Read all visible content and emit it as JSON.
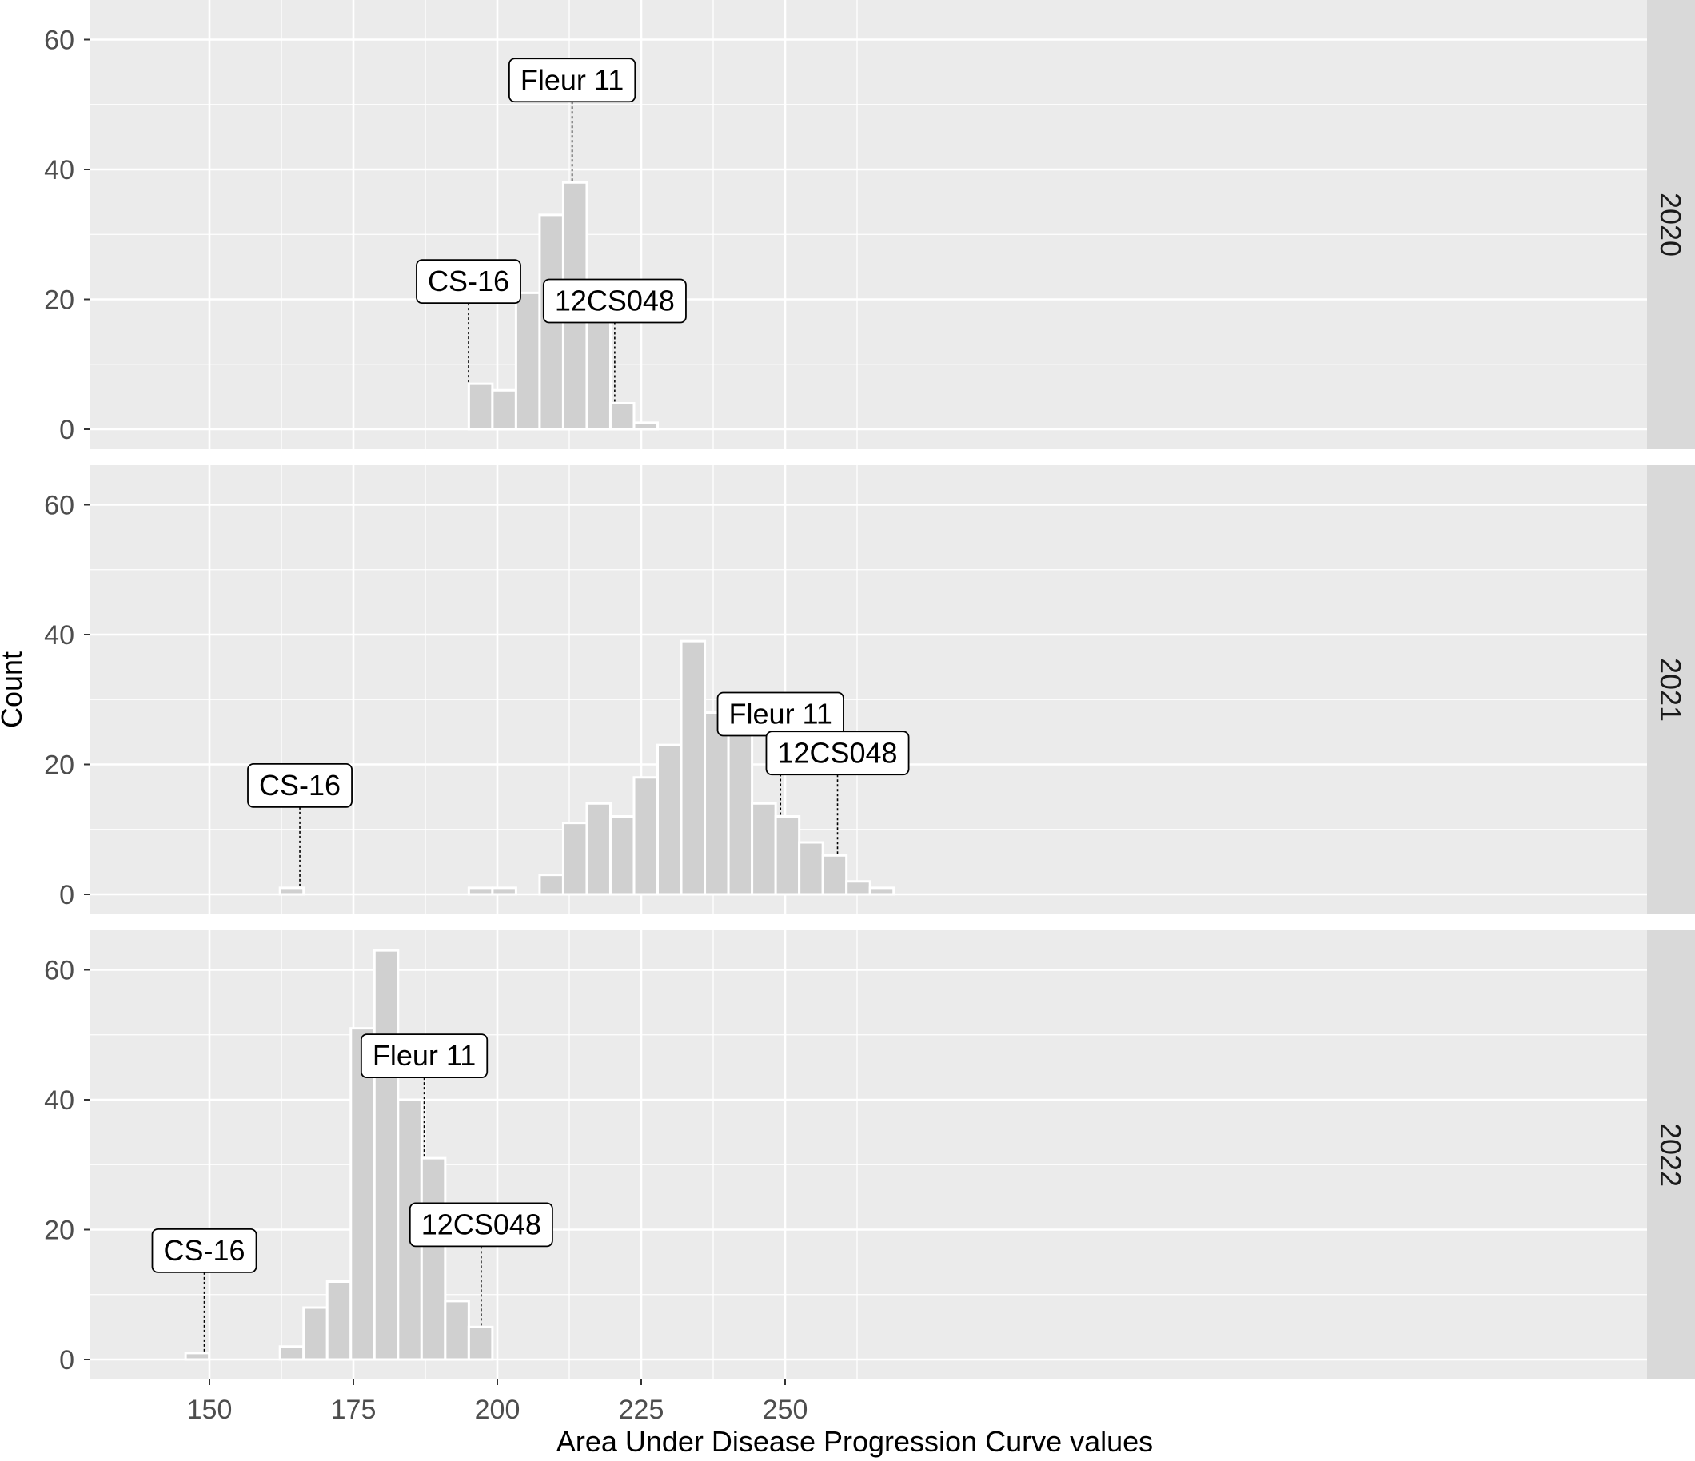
{
  "chart_data": {
    "type": "bar",
    "subtype": "faceted-histogram",
    "xlabel": "Area Under Disease Progression Curve values",
    "ylabel": "Count",
    "xlim": [
      140,
      270
    ],
    "ylim": [
      -3,
      66
    ],
    "x_ticks": [
      150,
      175,
      200,
      225,
      250
    ],
    "y_ticks": [
      0,
      20,
      40,
      60
    ],
    "bin_width": 4.1,
    "grid": true,
    "facets": [
      {
        "strip": "2020",
        "bins": [
          {
            "x": 197.1,
            "count": 7
          },
          {
            "x": 201.2,
            "count": 6
          },
          {
            "x": 205.3,
            "count": 21
          },
          {
            "x": 209.4,
            "count": 33
          },
          {
            "x": 213.5,
            "count": 38
          },
          {
            "x": 217.6,
            "count": 20
          },
          {
            "x": 221.7,
            "count": 4
          },
          {
            "x": 225.8,
            "count": 1
          }
        ],
        "labels": [
          {
            "text": "CS-16",
            "x": 195.0,
            "y": 7
          },
          {
            "text": "Fleur 11",
            "x": 213.0,
            "y": 38
          },
          {
            "text": "12CS048",
            "x": 220.4,
            "y": 4
          }
        ]
      },
      {
        "strip": "2021",
        "bins": [
          {
            "x": 164.3,
            "count": 1
          },
          {
            "x": 197.1,
            "count": 1
          },
          {
            "x": 201.2,
            "count": 1
          },
          {
            "x": 209.4,
            "count": 3
          },
          {
            "x": 213.5,
            "count": 11
          },
          {
            "x": 217.6,
            "count": 14
          },
          {
            "x": 221.7,
            "count": 12
          },
          {
            "x": 225.8,
            "count": 18
          },
          {
            "x": 229.9,
            "count": 23
          },
          {
            "x": 234.0,
            "count": 39
          },
          {
            "x": 238.1,
            "count": 28
          },
          {
            "x": 242.2,
            "count": 28
          },
          {
            "x": 246.3,
            "count": 14
          },
          {
            "x": 250.4,
            "count": 12
          },
          {
            "x": 254.5,
            "count": 8
          },
          {
            "x": 258.6,
            "count": 6
          },
          {
            "x": 262.7,
            "count": 2
          },
          {
            "x": 266.8,
            "count": 1
          }
        ],
        "labels": [
          {
            "text": "CS-16",
            "x": 165.7,
            "y": 1
          },
          {
            "text": "Fleur 11",
            "x": 249.2,
            "y": 12
          },
          {
            "text": "12CS048",
            "x": 259.1,
            "y": 6
          }
        ]
      },
      {
        "strip": "2022",
        "bins": [
          {
            "x": 147.9,
            "count": 1
          },
          {
            "x": 164.3,
            "count": 2
          },
          {
            "x": 168.4,
            "count": 8
          },
          {
            "x": 172.5,
            "count": 12
          },
          {
            "x": 176.6,
            "count": 51
          },
          {
            "x": 180.7,
            "count": 63
          },
          {
            "x": 184.8,
            "count": 40
          },
          {
            "x": 188.9,
            "count": 31
          },
          {
            "x": 193.0,
            "count": 9
          },
          {
            "x": 197.1,
            "count": 5
          }
        ],
        "labels": [
          {
            "text": "CS-16",
            "x": 149.1,
            "y": 1
          },
          {
            "text": "Fleur 11",
            "x": 187.3,
            "y": 31
          },
          {
            "text": "12CS048",
            "x": 197.2,
            "y": 5
          }
        ]
      }
    ]
  },
  "colors": {
    "panel_bg": "#ebebeb",
    "grid": "#ffffff",
    "bar_fill": "#d0d0d0",
    "bar_stroke": "#ffffff",
    "strip_bg": "#d9d9d9",
    "label_bg": "#ffffff",
    "label_border": "#000000"
  }
}
